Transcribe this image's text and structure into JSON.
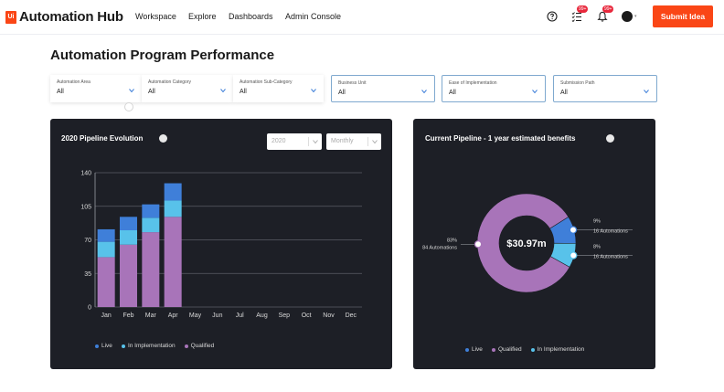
{
  "app": {
    "logo_mark": "Ui",
    "name": "Automation Hub"
  },
  "nav": [
    {
      "label": "Workspace"
    },
    {
      "label": "Explore"
    },
    {
      "label": "Dashboards"
    },
    {
      "label": "Admin Console"
    }
  ],
  "header": {
    "help_icon": "question-circle-icon",
    "tasks_icon": "task-list-icon",
    "tasks_badge": "99+",
    "notifications_icon": "bell-icon",
    "notifications_badge": "99+",
    "submit_label": "Submit Idea"
  },
  "page": {
    "title": "Automation Program Performance"
  },
  "filters": [
    {
      "label": "Automation Area",
      "value": "All"
    },
    {
      "label": "Automation Category",
      "value": "All"
    },
    {
      "label": "Automation Sub-Category",
      "value": "All"
    },
    {
      "label": "Business Unit",
      "value": "All"
    },
    {
      "label": "Ease of Implementation",
      "value": "All"
    },
    {
      "label": "Submission Path",
      "value": "All"
    }
  ],
  "pipeline_panel": {
    "title": "2020 Pipeline Evolution",
    "year_value": "2020",
    "period_value": "Monthly"
  },
  "benefits_panel": {
    "title": "Current Pipeline - 1 year estimated benefits",
    "center_value": "$30.97m",
    "annotations": [
      {
        "percent": "83%",
        "detail": "84 Automations"
      },
      {
        "percent": "9%",
        "detail": "16 Automations"
      },
      {
        "percent": "8%",
        "detail": "16 Automations"
      }
    ]
  },
  "colors": {
    "live": "#3f7fd9",
    "in_implementation": "#58c2ea",
    "qualified": "#a874b9",
    "accent": "#fa4616",
    "panel_bg": "#1d1f26"
  },
  "chart_data": [
    {
      "type": "bar",
      "stacked": true,
      "categories": [
        "Jan",
        "Feb",
        "Mar",
        "Apr",
        "May",
        "Jun",
        "Jul",
        "Aug",
        "Sep",
        "Oct",
        "Nov",
        "Dec"
      ],
      "series": [
        {
          "name": "Qualified",
          "values": [
            52,
            65,
            78,
            94,
            0,
            0,
            0,
            0,
            0,
            0,
            0,
            0
          ]
        },
        {
          "name": "In Implementation",
          "values": [
            16,
            15,
            15,
            17,
            0,
            0,
            0,
            0,
            0,
            0,
            0,
            0
          ]
        },
        {
          "name": "Live",
          "values": [
            13,
            14,
            14,
            18,
            0,
            0,
            0,
            0,
            0,
            0,
            0,
            0
          ]
        }
      ],
      "yticks": [
        0,
        35,
        70,
        105,
        140
      ],
      "ylim": [
        0,
        140
      ],
      "grid": true,
      "legend": [
        {
          "name": "Live"
        },
        {
          "name": "In Implementation"
        },
        {
          "name": "Qualified"
        }
      ],
      "legend_position": "bottom"
    },
    {
      "type": "pie",
      "donut": true,
      "slices": [
        {
          "name": "Qualified",
          "value": 83
        },
        {
          "name": "Live",
          "value": 9
        },
        {
          "name": "In Implementation",
          "value": 8
        }
      ],
      "legend": [
        {
          "name": "Live"
        },
        {
          "name": "Qualified"
        },
        {
          "name": "In Implementation"
        }
      ],
      "legend_position": "bottom"
    }
  ]
}
